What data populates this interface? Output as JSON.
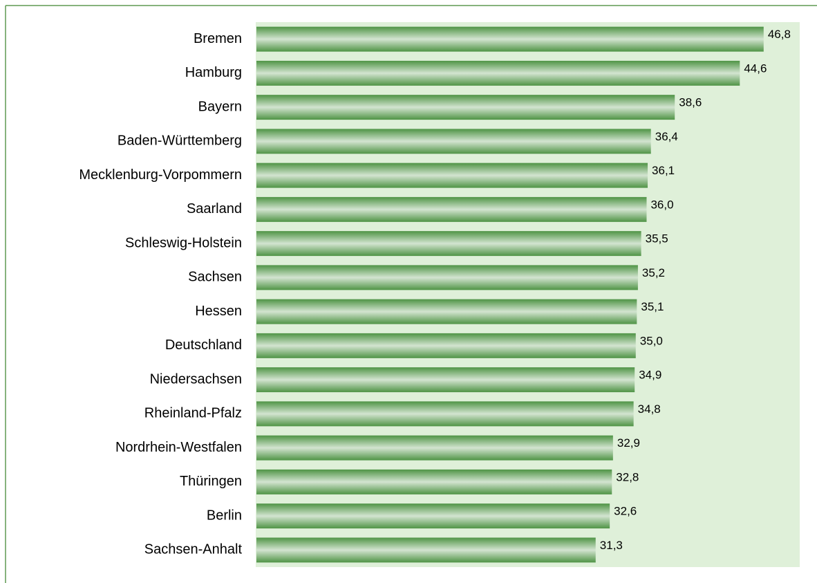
{
  "chart_data": {
    "type": "bar",
    "orientation": "horizontal",
    "categories": [
      "Bremen",
      "Hamburg",
      "Bayern",
      "Baden-Württemberg",
      "Mecklenburg-Vorpommern",
      "Saarland",
      "Schleswig-Holstein",
      "Sachsen",
      "Hessen",
      "Deutschland",
      "Niedersachsen",
      "Rheinland-Pfalz",
      "Nordrhein-Westfalen",
      "Thüringen",
      "Berlin",
      "Sachsen-Anhalt"
    ],
    "values": [
      46.8,
      44.6,
      38.6,
      36.4,
      36.1,
      36.0,
      35.5,
      35.2,
      35.1,
      35.0,
      34.9,
      34.8,
      32.9,
      32.8,
      32.6,
      31.3
    ],
    "value_labels": [
      "46,8",
      "44,6",
      "38,6",
      "36,4",
      "36,1",
      "36,0",
      "35,5",
      "35,2",
      "35,1",
      "35,0",
      "34,9",
      "34,8",
      "32,9",
      "32,8",
      "32,6",
      "31,3"
    ],
    "color": "#4f9445",
    "xlim": [
      0,
      50
    ]
  }
}
